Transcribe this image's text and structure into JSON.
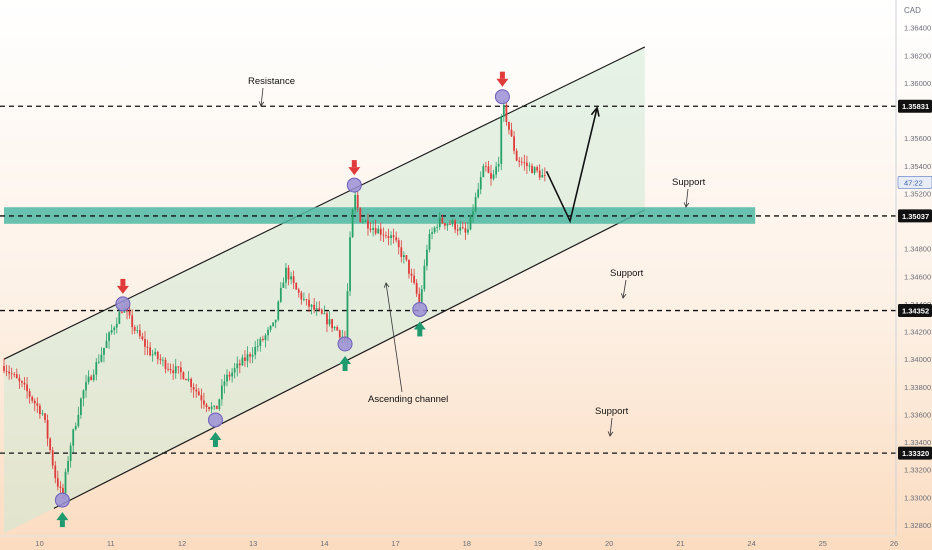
{
  "chart_data": {
    "type": "candlestick",
    "currency": "CAD",
    "price_axis": {
      "min": 1.3272,
      "max": 1.366,
      "ticks": [
        "1.36400",
        "1.36200",
        "1.36000",
        "1.35600",
        "1.35400",
        "1.35200",
        "1.34800",
        "1.34600",
        "1.34400",
        "1.34200",
        "1.34000",
        "1.33800",
        "1.33600",
        "1.33400",
        "1.33200",
        "1.33000",
        "1.32800"
      ],
      "tick_values": [
        1.364,
        1.362,
        1.36,
        1.356,
        1.354,
        1.352,
        1.348,
        1.346,
        1.344,
        1.342,
        1.34,
        1.338,
        1.336,
        1.334,
        1.332,
        1.33,
        1.328
      ],
      "price_labels": [
        {
          "value": 1.35831,
          "text": "1.35831"
        },
        {
          "value": 1.35037,
          "text": "1.35037"
        },
        {
          "value": 1.34352,
          "text": "1.34352"
        },
        {
          "value": 1.3332,
          "text": "1.33320"
        }
      ],
      "current_price_value": 1.3528,
      "current_price_tag": "47:22"
    },
    "time_axis": {
      "labels": [
        "10",
        "11",
        "12",
        "13",
        "14",
        "17",
        "18",
        "19",
        "20",
        "21",
        "24",
        "25",
        "26"
      ],
      "positions": [
        0.5,
        1.5,
        2.5,
        3.5,
        4.5,
        5.5,
        6.5,
        7.5,
        8.5,
        9.5,
        10.5,
        11.5,
        12.5
      ]
    },
    "levels": [
      {
        "name": "Resistance",
        "value": 1.35831
      },
      {
        "name": "Support",
        "value": 1.35037
      },
      {
        "name": "Support",
        "value": 1.34352
      },
      {
        "name": "Support",
        "value": 1.3332
      }
    ],
    "annotations": [
      {
        "text": "Resistance"
      },
      {
        "text": "Support"
      },
      {
        "text": "Support"
      },
      {
        "text": "Support"
      },
      {
        "text": "Ascending channel"
      }
    ],
    "channel": {
      "upper": [
        [
          0.0,
          1.34
        ],
        [
          9.0,
          1.3626
        ]
      ],
      "lower": [
        [
          0.7,
          1.3292
        ],
        [
          9.0,
          1.3508
        ]
      ]
    },
    "support_zone": {
      "from": 1.3498,
      "to": 1.351,
      "x_start": 0.0,
      "x_end": 10.55
    },
    "touch_points": [
      {
        "x": 0.82,
        "y": 1.3298,
        "kind": "low"
      },
      {
        "x": 1.67,
        "y": 1.344,
        "kind": "high"
      },
      {
        "x": 2.97,
        "y": 1.3356,
        "kind": "low"
      },
      {
        "x": 4.79,
        "y": 1.3411,
        "kind": "low"
      },
      {
        "x": 4.92,
        "y": 1.3526,
        "kind": "high"
      },
      {
        "x": 5.84,
        "y": 1.3436,
        "kind": "low"
      },
      {
        "x": 7.0,
        "y": 1.359,
        "kind": "high"
      }
    ],
    "projection": [
      [
        7.62,
        1.3536
      ],
      [
        7.95,
        1.35
      ],
      [
        8.33,
        1.3582
      ]
    ],
    "ohlc_anchors": [
      [
        0.0,
        1.3395
      ],
      [
        0.3,
        1.3378
      ],
      [
        0.55,
        1.336
      ],
      [
        0.72,
        1.3315
      ],
      [
        0.82,
        1.33
      ],
      [
        0.92,
        1.3335
      ],
      [
        1.1,
        1.3375
      ],
      [
        1.35,
        1.3402
      ],
      [
        1.55,
        1.3425
      ],
      [
        1.67,
        1.3438
      ],
      [
        1.85,
        1.342
      ],
      [
        2.05,
        1.3405
      ],
      [
        2.3,
        1.3395
      ],
      [
        2.55,
        1.3388
      ],
      [
        2.8,
        1.337
      ],
      [
        2.97,
        1.3362
      ],
      [
        3.1,
        1.3385
      ],
      [
        3.35,
        1.3398
      ],
      [
        3.6,
        1.3412
      ],
      [
        3.8,
        1.3425
      ],
      [
        3.95,
        1.3465
      ],
      [
        4.1,
        1.345
      ],
      [
        4.25,
        1.344
      ],
      [
        4.5,
        1.343
      ],
      [
        4.7,
        1.342
      ],
      [
        4.79,
        1.3414
      ],
      [
        4.86,
        1.3485
      ],
      [
        4.92,
        1.352
      ],
      [
        5.0,
        1.3502
      ],
      [
        5.2,
        1.3495
      ],
      [
        5.45,
        1.3488
      ],
      [
        5.65,
        1.347
      ],
      [
        5.84,
        1.344
      ],
      [
        5.95,
        1.3485
      ],
      [
        6.1,
        1.35
      ],
      [
        6.3,
        1.3498
      ],
      [
        6.5,
        1.349
      ],
      [
        6.62,
        1.3515
      ],
      [
        6.75,
        1.354
      ],
      [
        6.85,
        1.3528
      ],
      [
        6.95,
        1.3545
      ],
      [
        7.0,
        1.3585
      ],
      [
        7.1,
        1.3565
      ],
      [
        7.2,
        1.3545
      ],
      [
        7.35,
        1.354
      ],
      [
        7.5,
        1.3535
      ],
      [
        7.62,
        1.353
      ]
    ]
  }
}
